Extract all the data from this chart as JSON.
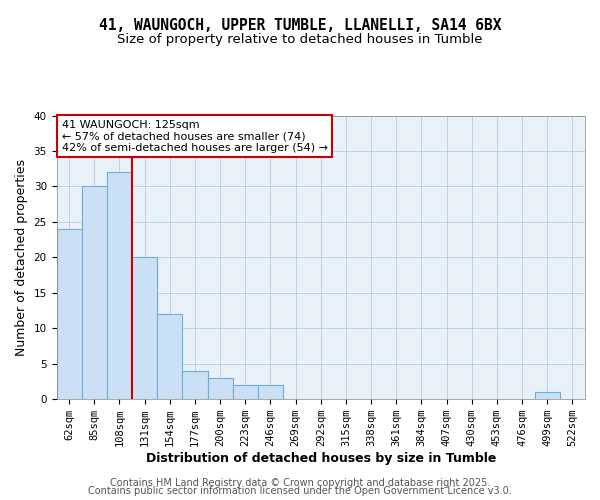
{
  "title_line1": "41, WAUNGOCH, UPPER TUMBLE, LLANELLI, SA14 6BX",
  "title_line2": "Size of property relative to detached houses in Tumble",
  "xlabel": "Distribution of detached houses by size in Tumble",
  "ylabel": "Number of detached properties",
  "bar_labels": [
    "62sqm",
    "85sqm",
    "108sqm",
    "131sqm",
    "154sqm",
    "177sqm",
    "200sqm",
    "223sqm",
    "246sqm",
    "269sqm",
    "292sqm",
    "315sqm",
    "338sqm",
    "361sqm",
    "384sqm",
    "407sqm",
    "430sqm",
    "453sqm",
    "476sqm",
    "499sqm",
    "522sqm"
  ],
  "bar_values": [
    24,
    30,
    32,
    20,
    12,
    4,
    3,
    2,
    2,
    0,
    0,
    0,
    0,
    0,
    0,
    0,
    0,
    0,
    0,
    1,
    0
  ],
  "bar_color": "#cce0f5",
  "bar_edgecolor": "#6baed6",
  "annotation_line1": "41 WAUNGOCH: 125sqm",
  "annotation_line2": "← 57% of detached houses are smaller (74)",
  "annotation_line3": "42% of semi-detached houses are larger (54) →",
  "annotation_box_edgecolor": "#cc0000",
  "vline_color": "#cc0000",
  "ylim": [
    0,
    40
  ],
  "yticks": [
    0,
    5,
    10,
    15,
    20,
    25,
    30,
    35,
    40
  ],
  "grid_color": "#b0c4d8",
  "bg_color": "#e8f0f8",
  "footer_line1": "Contains HM Land Registry data © Crown copyright and database right 2025.",
  "footer_line2": "Contains public sector information licensed under the Open Government Licence v3.0.",
  "title_fontsize": 10.5,
  "subtitle_fontsize": 9.5,
  "axis_label_fontsize": 9,
  "tick_fontsize": 7.5,
  "annotation_fontsize": 8,
  "footer_fontsize": 7
}
